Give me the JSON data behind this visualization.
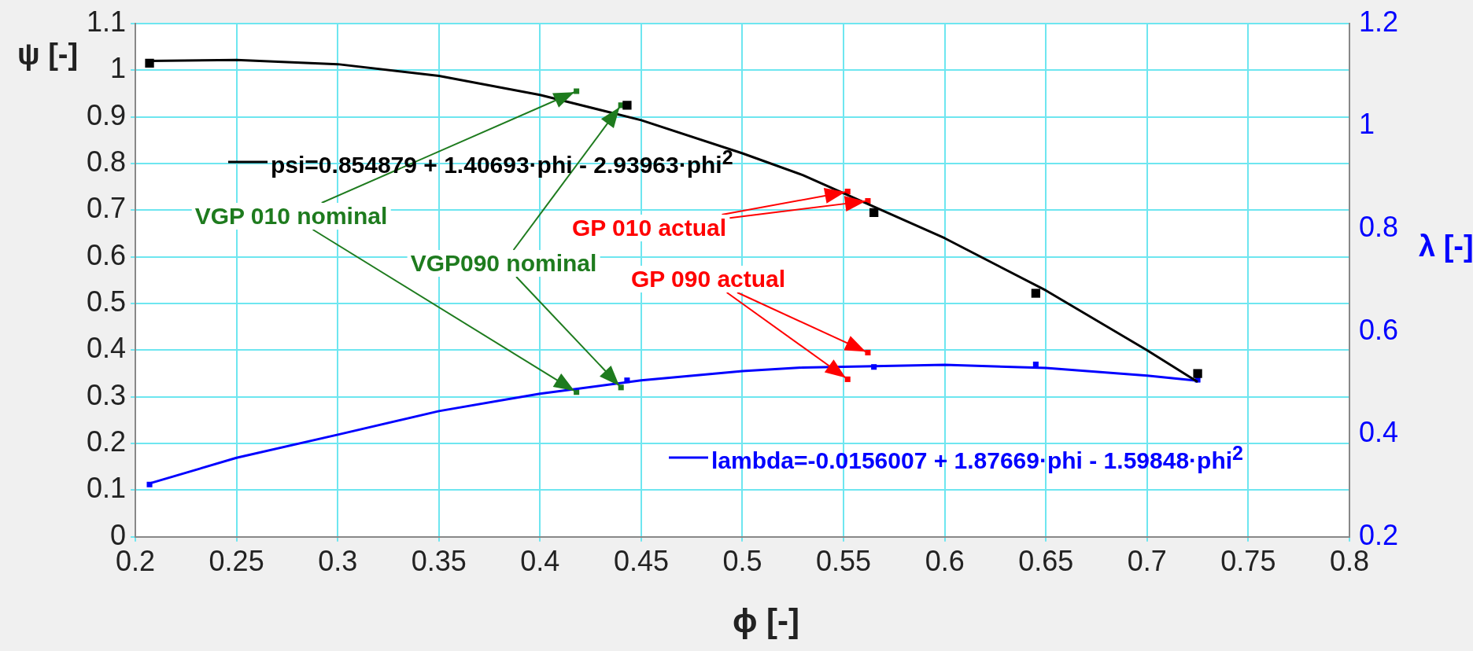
{
  "chart_data": {
    "type": "scatter",
    "xlabel": "ϕ  [-]",
    "ylabel": "ψ  [-]",
    "y2label": "λ  [-]",
    "xlim": [
      0.2,
      0.8
    ],
    "xticks": [
      0.2,
      0.25,
      0.3,
      0.35,
      0.4,
      0.45,
      0.5,
      0.55,
      0.6,
      0.65,
      0.7,
      0.75,
      0.8
    ],
    "ylim": [
      0,
      1.1
    ],
    "yticks": [
      0,
      0.1,
      0.2,
      0.3,
      0.4,
      0.5,
      0.6,
      0.7,
      0.8,
      0.9,
      1,
      1.1
    ],
    "y2lim": [
      0.2,
      1.2
    ],
    "y2ticks": [
      0.2,
      0.4,
      0.6,
      0.8,
      1,
      1.2
    ],
    "grid": true,
    "legend": "bottom left",
    "marker": "square",
    "series": [
      {
        "type": "line",
        "marker": "none",
        "name": "psi=0.854879 + 1.40693·phi - 2.93963·phi$^{2}$",
        "color": "#000000",
        "x": [
          0.207,
          0.25,
          0.3,
          0.35,
          0.4,
          0.45,
          0.5,
          0.53,
          0.6,
          0.65,
          0.7,
          0.725
        ],
        "values": [
          1.02,
          1.022,
          1.013,
          0.988,
          0.947,
          0.893,
          0.822,
          0.775,
          0.64,
          0.528,
          0.4,
          0.332
        ]
      },
      {
        "type": "line",
        "marker": "none",
        "axis": "y2",
        "name": "lambda=-0.0156007 + 1.87669·phi - 1.59848·phi$^{2}$",
        "color": "#0000ff",
        "x": [
          0.207,
          0.25,
          0.3,
          0.35,
          0.4,
          0.45,
          0.5,
          0.53,
          0.6,
          0.65,
          0.7,
          0.725
        ],
        "values": [
          0.304,
          0.354,
          0.399,
          0.445,
          0.479,
          0.505,
          0.523,
          0.53,
          0.535,
          0.529,
          0.514,
          0.504
        ]
      },
      {
        "color": "#000000",
        "x": [
          0.207,
          0.443,
          0.565,
          0.645,
          0.725
        ],
        "values": [
          1.015,
          0.925,
          0.695,
          0.522,
          0.35
        ]
      },
      {
        "axis": "y2",
        "color": "#0000ff",
        "x": [
          0.207,
          0.443,
          0.565,
          0.645,
          0.725
        ],
        "values": [
          0.302,
          0.505,
          0.531,
          0.536,
          0.506
        ]
      },
      {
        "color": "#1e7b1e",
        "x": [
          0.418,
          0.44
        ],
        "values": [
          0.955,
          0.925
        ]
      },
      {
        "axis": "y2",
        "color": "#1e7b1e",
        "x": [
          0.418,
          0.44
        ],
        "values": [
          0.482,
          0.491
        ]
      },
      {
        "color": "#ff0000",
        "x": [
          0.552,
          0.562
        ],
        "values": [
          0.74,
          0.72
        ]
      },
      {
        "axis": "y2",
        "color": "#ff0000",
        "x": [
          0.552,
          0.562
        ],
        "values": [
          0.507,
          0.559
        ]
      }
    ],
    "annotations": [
      {
        "text": "VGP 010 nominal",
        "x": 0.418,
        "y": 0.955
      },
      {
        "text": "VGP090 nominal",
        "x": 0.44,
        "y": 0.925
      },
      {
        "text": "GP 010 actual",
        "x": 0.552,
        "y": 0.74
      },
      {
        "text": "GP 090 actual",
        "x": 0.552,
        "y": 0.338
      }
    ]
  }
}
